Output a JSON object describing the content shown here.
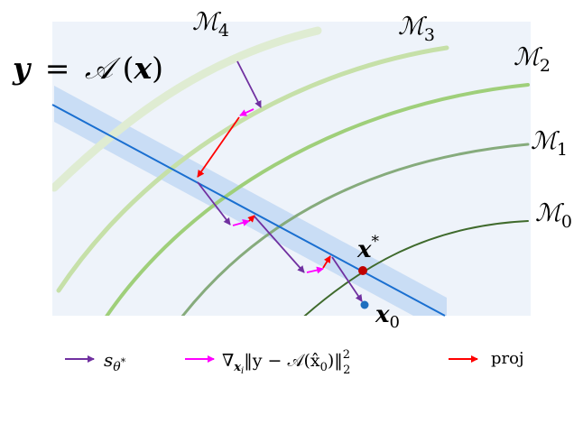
{
  "equation": {
    "lhs": "y",
    "eq": "=",
    "op": "𝒜",
    "arg": "x"
  },
  "manifolds": [
    {
      "letter": "ℳ",
      "sub": "4",
      "color": "#dfecd2"
    },
    {
      "letter": "ℳ",
      "sub": "3",
      "color": "#c6e0a8"
    },
    {
      "letter": "ℳ",
      "sub": "2",
      "color": "#9fcf7a"
    },
    {
      "letter": "ℳ",
      "sub": "1",
      "color": "#86ab7c"
    },
    {
      "letter": "ℳ",
      "sub": "0",
      "color": "#3f6a2c"
    }
  ],
  "points": {
    "x_star": {
      "base": "x",
      "sup": "*",
      "color": "#c00000"
    },
    "x_0": {
      "base": "x",
      "sub": "0",
      "color": "#1f6fbf"
    }
  },
  "colors": {
    "constraint_line": "#1a6fd0",
    "constraint_band": "#4a90e2",
    "score_arrow": "#7030a0",
    "gradient_arrow": "#ff00ff",
    "projection_arrow": "#ff0000"
  },
  "legend": {
    "score": {
      "base": "s",
      "sub": "θ",
      "subsup": "*"
    },
    "gradient": {
      "nabla": "∇",
      "sub": "x",
      "subsub": "i",
      "text": "‖y − 𝒜(x̂",
      "zero": "0",
      "close": ")‖",
      "pow": "2",
      "norm_sub": "2"
    },
    "proj": "proj"
  }
}
